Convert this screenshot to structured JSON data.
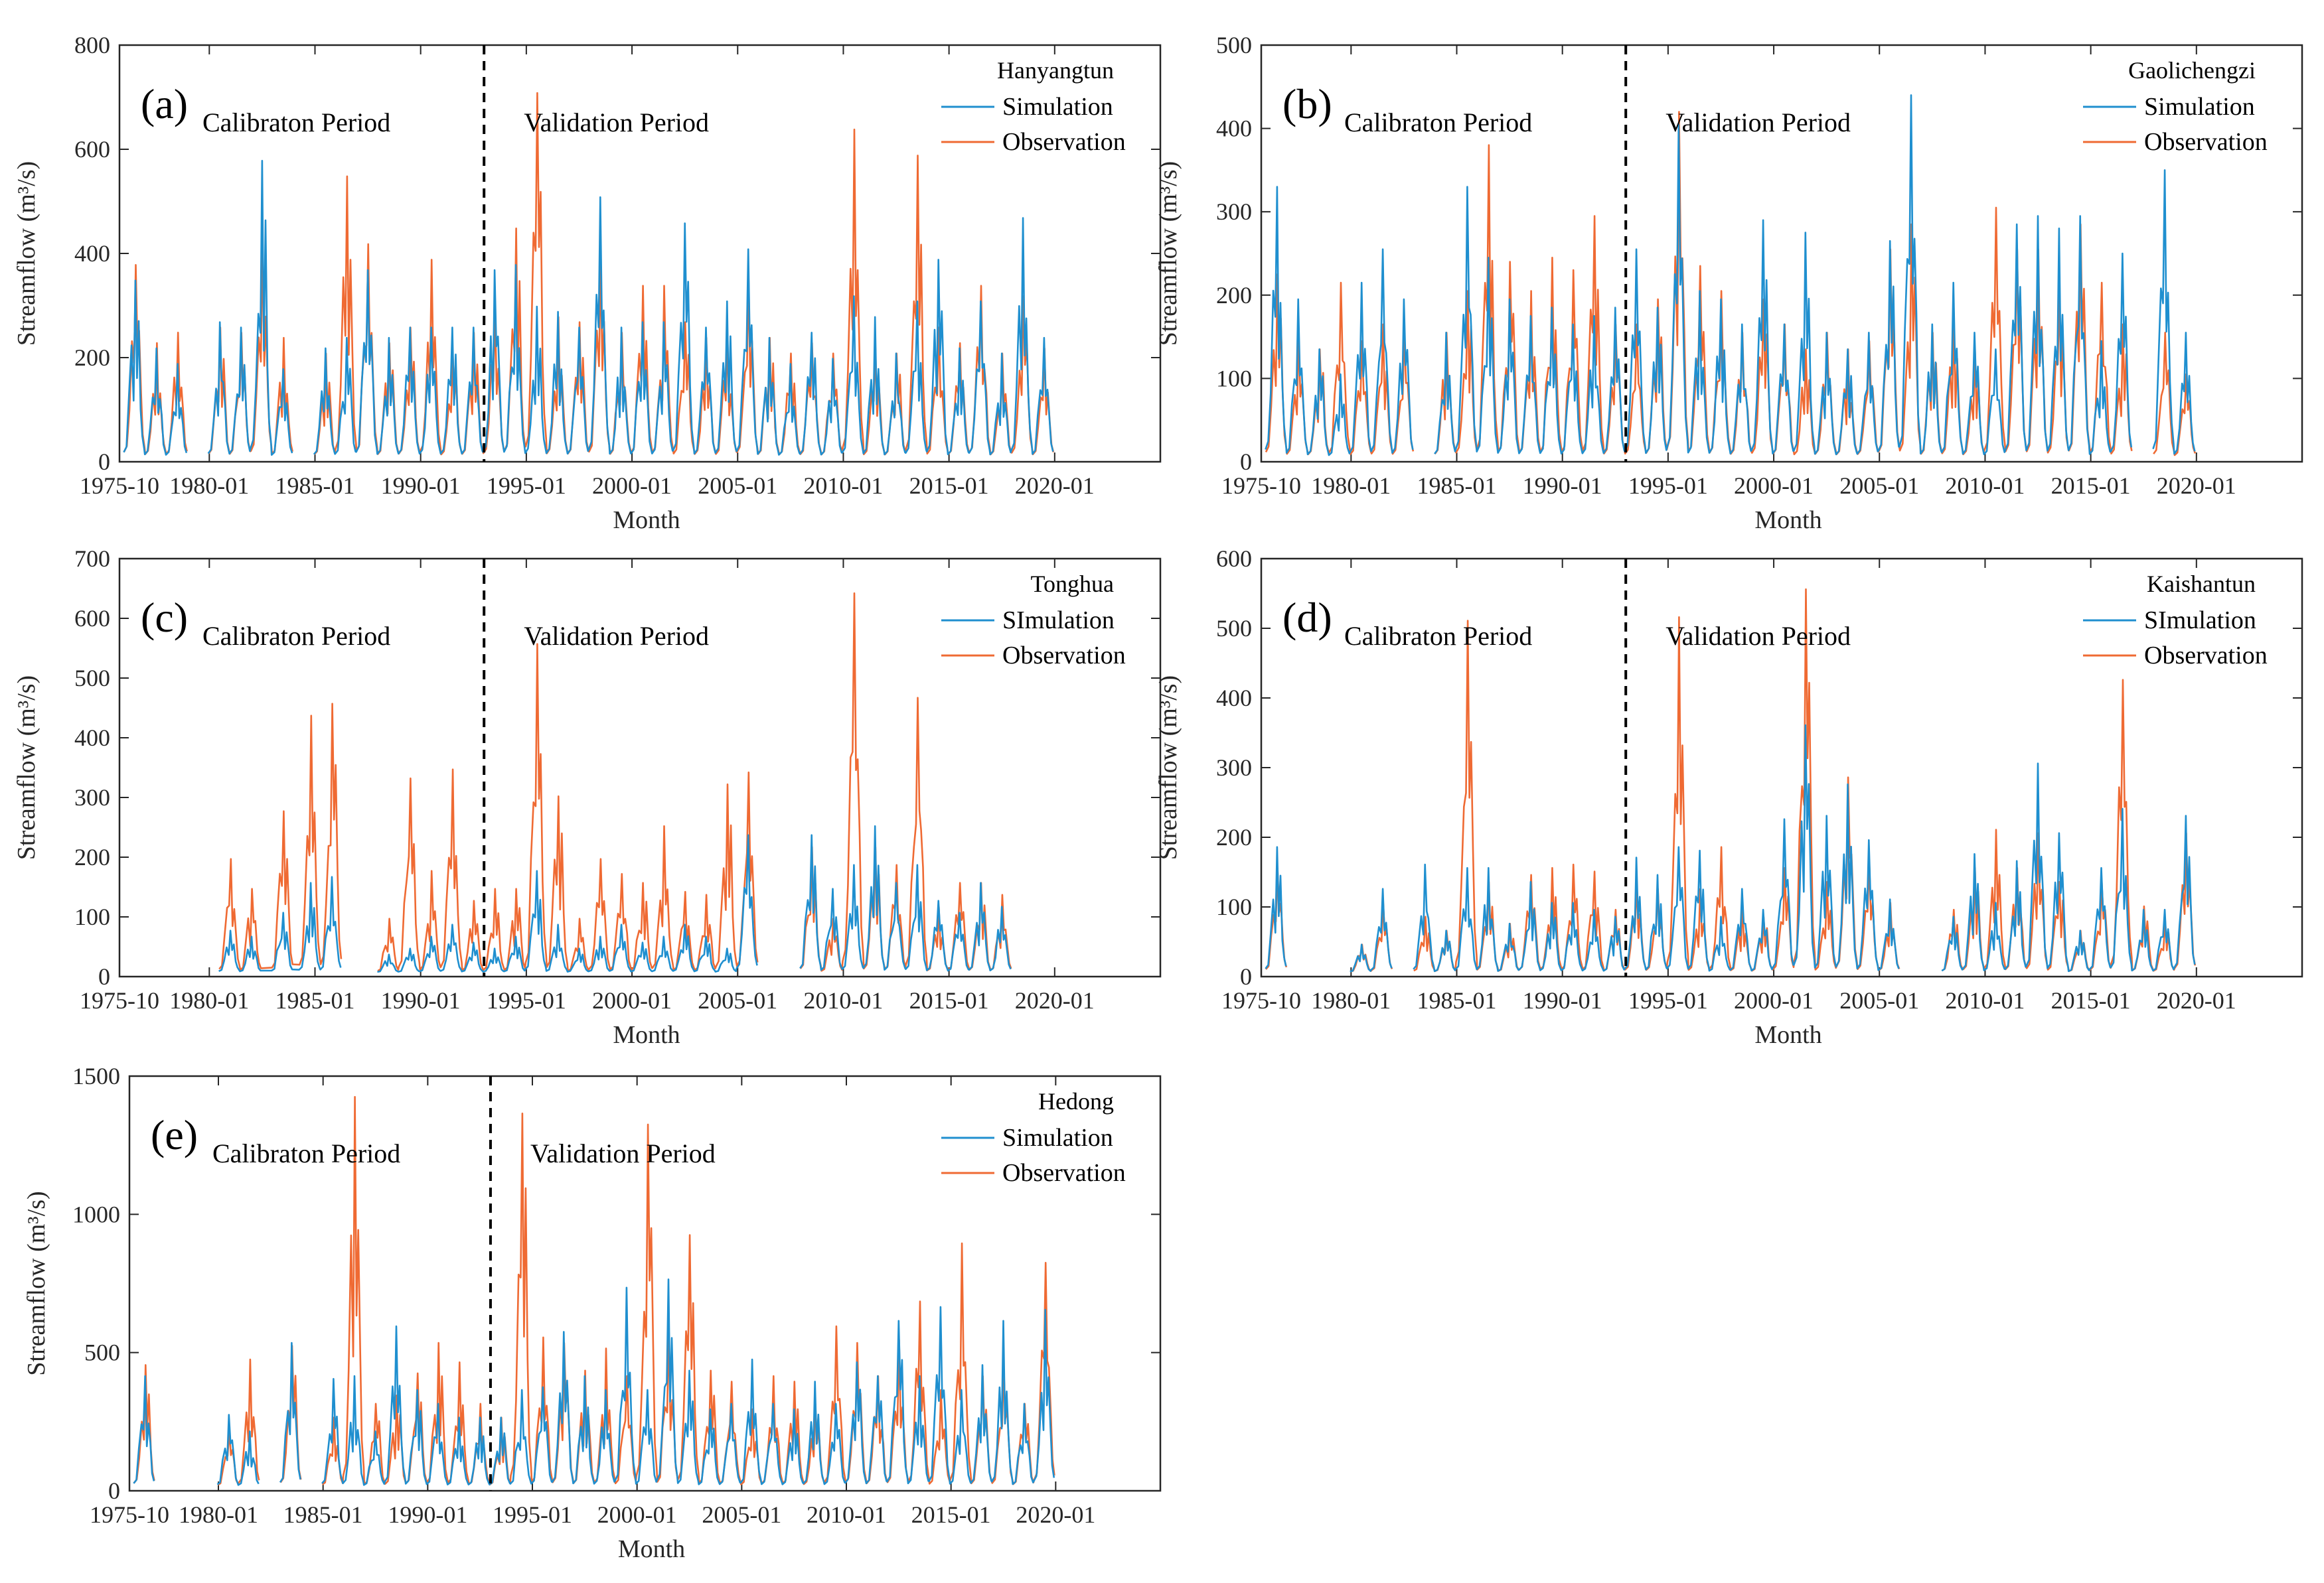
{
  "figure": {
    "xlabel": "Month",
    "ylabel": "Streamflow (m³/s)",
    "period_labels": [
      "Calibraton Period",
      "Validation Period"
    ],
    "series_colors": {
      "simulation": "#1f8fcf",
      "observation": "#ef6a33"
    }
  },
  "chart_data": [
    {
      "type": "line",
      "panel": "(a)",
      "station": "Hanyangtun",
      "legend": [
        "Simulation",
        "Observation"
      ],
      "ylim": [
        0,
        800
      ],
      "yticks": [
        0,
        200,
        400,
        600,
        800
      ],
      "xlim": [
        1975.75,
        2025.0
      ],
      "xtick_values": [
        1975.75,
        1980.0,
        1985.0,
        1990.0,
        1995.0,
        2000.0,
        2005.0,
        2010.0,
        2015.0,
        2020.0
      ],
      "xtick_labels": [
        "1975-10",
        "1980-01",
        "1985-01",
        "1990-01",
        "1995-01",
        "2000-01",
        "2005-01",
        "2010-01",
        "2015-01",
        "2020-01"
      ],
      "divider_x": 1993.0,
      "series": [
        {
          "name": "Simulation",
          "x": [
            1976.5,
            1977.5,
            1978.5,
            1980.5,
            1981.5,
            1982.5,
            1983.5,
            1985.5,
            1986.5,
            1987.5,
            1988.5,
            1989.5,
            1990.5,
            1991.5,
            1992.5,
            1993.5,
            1994.5,
            1995.5,
            1996.5,
            1997.5,
            1998.5,
            1999.5,
            2000.5,
            2001.5,
            2002.5,
            2003.5,
            2004.5,
            2005.5,
            2006.5,
            2007.5,
            2008.5,
            2009.5,
            2010.5,
            2011.5,
            2012.5,
            2013.5,
            2014.5,
            2015.5,
            2016.5,
            2017.5,
            2018.5,
            2019.5
          ],
          "y": [
            340,
            210,
            180,
            260,
            250,
            570,
            170,
            210,
            230,
            360,
            230,
            250,
            250,
            250,
            250,
            360,
            370,
            290,
            280,
            250,
            500,
            250,
            260,
            260,
            450,
            250,
            300,
            400,
            230,
            180,
            240,
            190,
            310,
            270,
            200,
            300,
            380,
            210,
            300,
            200,
            460,
            230
          ]
        },
        {
          "name": "Observation",
          "x": [
            1976.5,
            1977.5,
            1978.5,
            1980.5,
            1981.5,
            1982.5,
            1983.5,
            1985.5,
            1986.5,
            1987.5,
            1988.5,
            1989.5,
            1990.5,
            1991.5,
            1992.5,
            1993.5,
            1994.5,
            1995.5,
            1996.5,
            1997.5,
            1998.5,
            1999.5,
            2000.5,
            2001.5,
            2002.5,
            2003.5,
            2004.5,
            2005.5,
            2006.5,
            2007.5,
            2008.5,
            2009.5,
            2010.5,
            2011.5,
            2012.5,
            2013.5,
            2014.5,
            2015.5,
            2016.5,
            2017.5,
            2018.5,
            2019.5
          ],
          "y": [
            370,
            220,
            240,
            250,
            240,
            420,
            230,
            200,
            540,
            410,
            220,
            250,
            380,
            200,
            240,
            280,
            440,
            700,
            270,
            260,
            380,
            240,
            330,
            330,
            260,
            230,
            230,
            340,
            230,
            200,
            220,
            200,
            630,
            210,
            200,
            580,
            250,
            220,
            330,
            200,
            310,
            210
          ]
        }
      ]
    },
    {
      "type": "line",
      "panel": "(b)",
      "station": "Gaolichengzi",
      "legend": [
        "Simulation",
        "Observation"
      ],
      "ylim": [
        0,
        500
      ],
      "yticks": [
        0,
        100,
        200,
        300,
        400,
        500
      ],
      "xlim": [
        1975.75,
        2025.0
      ],
      "xtick_values": [
        1975.75,
        1980.0,
        1985.0,
        1990.0,
        1995.0,
        2000.0,
        2005.0,
        2010.0,
        2015.0,
        2020.0
      ],
      "xtick_labels": [
        "1975-10",
        "1980-01",
        "1985-01",
        "1990-01",
        "1995-01",
        "2000-01",
        "2005-01",
        "2010-01",
        "2015-01",
        "2020-01"
      ],
      "divider_x": 1993.0,
      "series": [
        {
          "name": "Simulation",
          "x": [
            1976.5,
            1977.5,
            1978.5,
            1979.5,
            1980.5,
            1981.5,
            1982.5,
            1984.5,
            1985.5,
            1986.5,
            1987.5,
            1988.5,
            1989.5,
            1990.5,
            1991.5,
            1992.5,
            1993.5,
            1994.5,
            1995.5,
            1996.5,
            1997.5,
            1998.5,
            1999.5,
            2000.5,
            2001.5,
            2002.5,
            2003.5,
            2004.5,
            2005.5,
            2006.5,
            2007.5,
            2008.5,
            2009.5,
            2010.5,
            2011.5,
            2012.5,
            2013.5,
            2014.5,
            2015.5,
            2016.5,
            2018.5,
            2019.5
          ],
          "y": [
            325,
            190,
            130,
            100,
            210,
            250,
            190,
            150,
            325,
            240,
            190,
            170,
            180,
            160,
            170,
            180,
            250,
            180,
            400,
            200,
            190,
            160,
            285,
            160,
            270,
            150,
            130,
            150,
            260,
            435,
            160,
            210,
            150,
            130,
            280,
            290,
            275,
            290,
            140,
            245,
            345,
            150
          ]
        },
        {
          "name": "Observation",
          "x": [
            1976.5,
            1977.5,
            1978.5,
            1979.5,
            1980.5,
            1981.5,
            1982.5,
            1984.5,
            1985.5,
            1986.5,
            1987.5,
            1988.5,
            1989.5,
            1990.5,
            1991.5,
            1992.5,
            1993.5,
            1994.5,
            1995.5,
            1996.5,
            1997.5,
            1998.5,
            1999.5,
            2000.5,
            2001.5,
            2002.5,
            2003.5,
            2004.5,
            2005.5,
            2006.5,
            2007.5,
            2008.5,
            2009.5,
            2010.5,
            2011.5,
            2012.5,
            2013.5,
            2014.5,
            2015.5,
            2016.5,
            2018.5,
            2019.5
          ],
          "y": [
            220,
            150,
            130,
            210,
            140,
            160,
            150,
            150,
            200,
            375,
            235,
            200,
            240,
            225,
            290,
            160,
            160,
            190,
            415,
            230,
            200,
            150,
            190,
            160,
            130,
            150,
            130,
            140,
            250,
            280,
            150,
            170,
            130,
            300,
            250,
            250,
            200,
            280,
            210,
            160,
            150,
            100
          ]
        }
      ]
    },
    {
      "type": "line",
      "panel": "(c)",
      "station": "Tonghua",
      "legend": [
        "SImulation",
        "Observation"
      ],
      "ylim": [
        0,
        700
      ],
      "yticks": [
        0,
        100,
        200,
        300,
        400,
        500,
        600,
        700
      ],
      "xlim": [
        1975.75,
        2025.0
      ],
      "xtick_values": [
        1975.75,
        1980.0,
        1985.0,
        1990.0,
        1995.0,
        2000.0,
        2005.0,
        2010.0,
        2015.0,
        2020.0
      ],
      "xtick_labels": [
        "1975-10",
        "1980-01",
        "1985-01",
        "1990-01",
        "1995-01",
        "2000-01",
        "2005-01",
        "2010-01",
        "2015-01",
        "2020-01"
      ],
      "divider_x": 1993.0,
      "series": [
        {
          "name": "SImulation",
          "x": [
            1981.0,
            1982.0,
            1983.5,
            1984.8,
            1985.8,
            1988.5,
            1989.5,
            1990.5,
            1991.5,
            1992.5,
            1993.5,
            1994.5,
            1995.5,
            1996.5,
            1997.5,
            1998.5,
            1999.5,
            2000.5,
            2001.5,
            2002.5,
            2003.5,
            2004.5,
            2005.5,
            2008.5,
            2009.5,
            2010.5,
            2011.5,
            2012.5,
            2013.5,
            2014.5,
            2015.5,
            2016.5,
            2017.5
          ],
          "y": [
            70,
            60,
            100,
            150,
            160,
            30,
            40,
            60,
            80,
            50,
            40,
            60,
            170,
            80,
            40,
            60,
            80,
            50,
            60,
            80,
            60,
            40,
            230,
            230,
            140,
            180,
            245,
            150,
            180,
            120,
            100,
            150,
            110
          ]
        },
        {
          "name": "Observation",
          "x": [
            1981.0,
            1982.0,
            1983.5,
            1984.8,
            1985.8,
            1988.5,
            1989.5,
            1990.5,
            1991.5,
            1992.5,
            1993.5,
            1994.5,
            1995.5,
            1996.5,
            1997.5,
            1998.5,
            1999.5,
            2000.5,
            2001.5,
            2002.5,
            2003.5,
            2004.5,
            2005.5,
            2008.5,
            2009.5,
            2010.5,
            2011.5,
            2012.5,
            2013.5,
            2014.5,
            2015.5,
            2016.5,
            2017.5
          ],
          "y": [
            190,
            140,
            270,
            430,
            450,
            90,
            325,
            170,
            340,
            120,
            140,
            140,
            550,
            295,
            90,
            190,
            165,
            150,
            245,
            135,
            130,
            315,
            335,
            210,
            90,
            635,
            210,
            180,
            460,
            110,
            150,
            150,
            130
          ]
        }
      ]
    },
    {
      "type": "line",
      "panel": "(d)",
      "station": "Kaishantun",
      "legend": [
        "SImulation",
        "Observation"
      ],
      "ylim": [
        0,
        600
      ],
      "yticks": [
        0,
        100,
        200,
        300,
        400,
        500,
        600
      ],
      "xlim": [
        1975.75,
        2025.0
      ],
      "xtick_values": [
        1975.75,
        1980.0,
        1985.0,
        1990.0,
        1995.0,
        2000.0,
        2005.0,
        2010.0,
        2015.0,
        2020.0
      ],
      "xtick_labels": [
        "1975-10",
        "1980-01",
        "1985-01",
        "1990-01",
        "1995-01",
        "2000-01",
        "2005-01",
        "2010-01",
        "2015-01",
        "2020-01"
      ],
      "divider_x": 1993.0,
      "series": [
        {
          "name": "SImulation",
          "x": [
            1976.5,
            1980.5,
            1981.5,
            1983.5,
            1984.5,
            1985.5,
            1986.5,
            1987.5,
            1988.5,
            1989.5,
            1990.5,
            1991.5,
            1992.5,
            1993.5,
            1994.5,
            1995.5,
            1996.5,
            1997.5,
            1998.5,
            1999.5,
            2000.5,
            2001.5,
            2002.5,
            2003.5,
            2004.5,
            2005.5,
            2008.5,
            2009.5,
            2010.5,
            2011.5,
            2012.5,
            2013.5,
            2014.5,
            2015.5,
            2016.5,
            2017.5,
            2018.5,
            2019.5
          ],
          "y": [
            180,
            40,
            120,
            155,
            60,
            150,
            150,
            70,
            130,
            100,
            100,
            90,
            80,
            165,
            140,
            180,
            175,
            80,
            120,
            90,
            220,
            355,
            225,
            270,
            190,
            105,
            80,
            170,
            100,
            160,
            300,
            200,
            60,
            150,
            235,
            90,
            90,
            225
          ]
        },
        {
          "name": "Observation",
          "x": [
            1976.5,
            1980.5,
            1981.5,
            1983.5,
            1984.5,
            1985.5,
            1986.5,
            1987.5,
            1988.5,
            1989.5,
            1990.5,
            1991.5,
            1992.5,
            1993.5,
            1994.5,
            1995.5,
            1996.5,
            1997.5,
            1998.5,
            1999.5,
            2000.5,
            2001.5,
            2002.5,
            2003.5,
            2004.5,
            2005.5,
            2008.5,
            2009.5,
            2010.5,
            2011.5,
            2012.5,
            2013.5,
            2014.5,
            2015.5,
            2016.5,
            2017.5,
            2018.5,
            2019.5
          ],
          "y": [
            150,
            40,
            100,
            80,
            60,
            505,
            130,
            70,
            140,
            150,
            155,
            145,
            90,
            130,
            120,
            510,
            120,
            180,
            100,
            80,
            150,
            550,
            130,
            280,
            160,
            100,
            90,
            150,
            205,
            150,
            200,
            130,
            60,
            130,
            420,
            95,
            75,
            200
          ]
        }
      ]
    },
    {
      "type": "line",
      "panel": "(e)",
      "station": "Hedong",
      "legend": [
        "Simulation",
        "Observation"
      ],
      "ylim": [
        0,
        1500
      ],
      "yticks": [
        0,
        500,
        1000,
        1500
      ],
      "xlim": [
        1975.75,
        2025.0
      ],
      "xtick_values": [
        1975.75,
        1980.0,
        1985.0,
        1990.0,
        1995.0,
        2000.0,
        2005.0,
        2010.0,
        2015.0,
        2020.0
      ],
      "xtick_labels": [
        "1975-10",
        "1980-01",
        "1985-01",
        "1990-01",
        "1995-01",
        "2000-01",
        "2005-01",
        "2010-01",
        "2015-01",
        "2020-01"
      ],
      "divider_x": 1993.0,
      "series": [
        {
          "name": "Simulation",
          "x": [
            1976.5,
            1980.5,
            1981.5,
            1983.5,
            1985.5,
            1986.5,
            1987.5,
            1988.5,
            1989.5,
            1990.5,
            1991.5,
            1992.5,
            1993.5,
            1994.5,
            1995.5,
            1996.5,
            1997.5,
            1998.5,
            1999.5,
            2000.5,
            2001.5,
            2002.5,
            2003.5,
            2004.5,
            2005.5,
            2006.5,
            2007.5,
            2008.5,
            2009.5,
            2010.5,
            2011.5,
            2012.5,
            2013.5,
            2014.5,
            2015.5,
            2016.5,
            2017.5,
            2018.5,
            2019.5
          ],
          "y": [
            400,
            260,
            200,
            520,
            390,
            400,
            200,
            580,
            350,
            300,
            250,
            250,
            250,
            350,
            360,
            560,
            400,
            350,
            720,
            350,
            750,
            420,
            280,
            300,
            460,
            300,
            280,
            380,
            300,
            450,
            400,
            600,
            400,
            650,
            350,
            440,
            600,
            300,
            640
          ]
        },
        {
          "name": "Observation",
          "x": [
            1976.5,
            1980.5,
            1981.5,
            1983.5,
            1985.5,
            1986.5,
            1987.5,
            1988.5,
            1989.5,
            1990.5,
            1991.5,
            1992.5,
            1993.5,
            1994.5,
            1995.5,
            1996.5,
            1997.5,
            1998.5,
            1999.5,
            2000.5,
            2001.5,
            2002.5,
            2003.5,
            2004.5,
            2005.5,
            2006.5,
            2007.5,
            2008.5,
            2009.5,
            2010.5,
            2011.5,
            2012.5,
            2013.5,
            2014.5,
            2015.5,
            2016.5,
            2017.5,
            2018.5,
            2019.5
          ],
          "y": [
            440,
            200,
            460,
            510,
            250,
            1410,
            300,
            330,
            410,
            520,
            450,
            300,
            250,
            1350,
            540,
            520,
            420,
            500,
            400,
            1310,
            580,
            910,
            420,
            380,
            280,
            400,
            380,
            300,
            580,
            520,
            400,
            530,
            670,
            350,
            880,
            400,
            430,
            300,
            810
          ]
        }
      ]
    }
  ]
}
